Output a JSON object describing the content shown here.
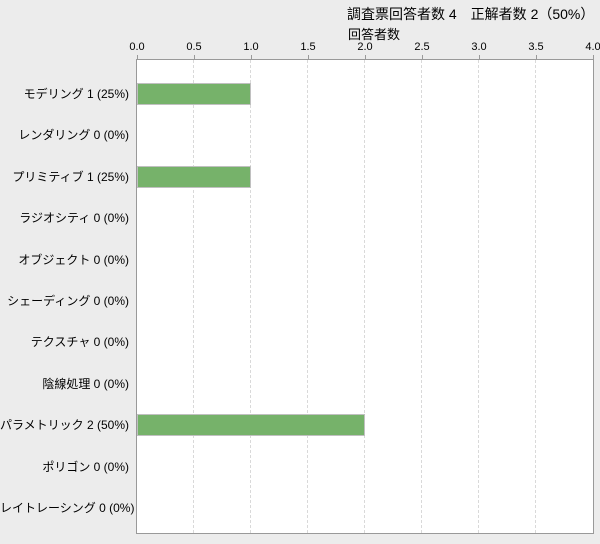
{
  "title": "調査票回答者数 4　正解者数 2（50%）",
  "chart_data": {
    "type": "bar",
    "orientation": "horizontal",
    "title": "調査票回答者数 4　正解者数 2（50%）",
    "axis_title": "回答者数",
    "categories": [
      "モデリング",
      "レンダリング",
      "プリミティブ",
      "ラジオシティ",
      "オブジェクト",
      "シェーディング",
      "テクスチャ",
      "陰線処理",
      "パラメトリック",
      "ポリゴン",
      "レイトレーシング"
    ],
    "category_labels": [
      "モデリング 1 (25%)",
      "レンダリング 0 (0%)",
      "プリミティブ 1 (25%)",
      "ラジオシティ 0 (0%)",
      "オブジェクト 0 (0%)",
      "シェーディング 0 (0%)",
      "テクスチャ 0 (0%)",
      "陰線処理 0 (0%)",
      "パラメトリック 2 (50%)",
      "ポリゴン 0 (0%)",
      "レイトレーシング 0 (0%)"
    ],
    "values": [
      1,
      0,
      1,
      0,
      0,
      0,
      0,
      0,
      2,
      0,
      0
    ],
    "percent_labels": [
      "25%",
      "0%",
      "25%",
      "0%",
      "0%",
      "0%",
      "0%",
      "0%",
      "50%",
      "0%",
      "0%"
    ],
    "xlim": [
      0.0,
      4.0
    ],
    "x_ticks": [
      "0.0",
      "0.5",
      "1.0",
      "1.5",
      "2.0",
      "2.5",
      "3.0",
      "3.5",
      "4.0"
    ],
    "grid": true,
    "bar_color": "#76b26a",
    "bar_border_color": "#c0c0c0"
  },
  "colors": {
    "background": "#ececec",
    "plot_background": "#ffffff",
    "plot_border": "#999999",
    "grid_line": "#d9d9d9",
    "tick_mark": "#999999",
    "text": "#000000"
  }
}
